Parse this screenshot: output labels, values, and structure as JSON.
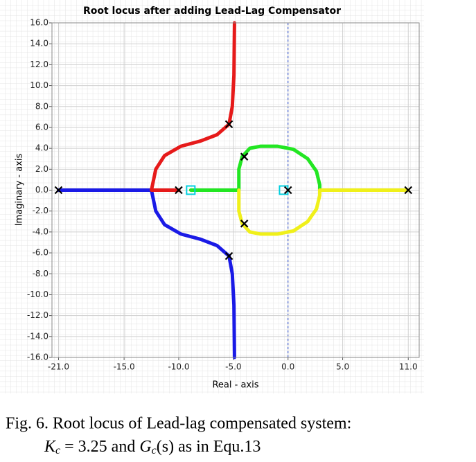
{
  "chart_data": {
    "type": "line",
    "title": "Root locus after adding Lead-Lag Compensator",
    "xlabel": "Real - axis",
    "ylabel": "Imaginary - axis",
    "xlim": [
      -21.6,
      12
    ],
    "ylim": [
      -16,
      16
    ],
    "xticks": [
      {
        "value": -21,
        "label": "-21.0"
      },
      {
        "value": -15,
        "label": "-15.0"
      },
      {
        "value": -10,
        "label": "-10.0"
      },
      {
        "value": -5,
        "label": "-5.0"
      },
      {
        "value": 0,
        "label": "0.0"
      },
      {
        "value": 5,
        "label": "5.0"
      },
      {
        "value": 11,
        "label": "11.0"
      }
    ],
    "yticks": [
      {
        "value": 16,
        "label": "16.0"
      },
      {
        "value": 14,
        "label": "14.0"
      },
      {
        "value": 12,
        "label": "12.0"
      },
      {
        "value": 10,
        "label": "10.0"
      },
      {
        "value": 8,
        "label": "8.0"
      },
      {
        "value": 6,
        "label": "6.0"
      },
      {
        "value": 4,
        "label": "4.0"
      },
      {
        "value": 2,
        "label": "2.0"
      },
      {
        "value": 0,
        "label": "0.0"
      },
      {
        "value": -2,
        "label": "-2.0"
      },
      {
        "value": -4,
        "label": "-4.0"
      },
      {
        "value": -6,
        "label": "-6.0"
      },
      {
        "value": -8,
        "label": "-8.0"
      },
      {
        "value": -10,
        "label": "-10.0"
      },
      {
        "value": -12,
        "label": "-12.0"
      },
      {
        "value": -14,
        "label": "-14.0"
      },
      {
        "value": -16,
        "label": "-16.0"
      }
    ],
    "grid": true,
    "series": [
      {
        "color": "#1a1ae6",
        "x": [
          -21,
          -12.5,
          -12.1,
          -11.3,
          -9.8,
          -8,
          -6.5,
          -5.4,
          -5.1,
          -4.95,
          -4.9
        ],
        "values": [
          0,
          0,
          -2,
          -3.3,
          -4.2,
          -4.7,
          -5.3,
          -6.3,
          -8,
          -11,
          -16
        ]
      },
      {
        "color": "#e61a1a",
        "x": [
          -10,
          -12.5,
          -12.1,
          -11.3,
          -9.8,
          -8,
          -6.5,
          -5.4,
          -5.1,
          -4.95,
          -4.9
        ],
        "values": [
          0,
          0,
          2,
          3.3,
          4.2,
          4.7,
          5.3,
          6.3,
          8,
          11,
          16
        ]
      },
      {
        "color": "#22e622",
        "x": [
          -8.9,
          -4.5,
          -4.5,
          -4.2,
          -3.5,
          -2.5,
          -1,
          0.5,
          1.8,
          2.6,
          2.9,
          2.9
        ],
        "values": [
          0,
          0,
          2,
          3.2,
          4,
          4.2,
          4.2,
          3.9,
          3,
          1.8,
          0.5,
          0
        ]
      },
      {
        "color": "#f0f01a",
        "x": [
          11,
          2.9,
          2.9,
          2.6,
          1.8,
          0.5,
          -1,
          -2.5,
          -3.5,
          -4.2,
          -4.5,
          -4.5
        ],
        "values": [
          0,
          0,
          -0.5,
          -1.8,
          -3,
          -3.9,
          -4.2,
          -4.2,
          -4,
          -3.2,
          -2,
          0
        ]
      },
      {
        "color": "#00d0e0",
        "marker": "square",
        "x": [
          -8.9,
          -0.4
        ],
        "values": [
          0,
          0
        ]
      },
      {
        "color": "#000000",
        "marker": "x",
        "x": [
          -21,
          -10,
          -5.4,
          -5.4,
          -4,
          -4,
          0,
          11
        ],
        "values": [
          0,
          0,
          6.3,
          -6.3,
          3.2,
          -3.2,
          0,
          0
        ]
      }
    ]
  },
  "caption": {
    "line1": "Fig. 6. Root locus of Lead-lag compensated system:",
    "line2": [
      "K",
      "c",
      " = 3.25 and ",
      "G",
      "c",
      "(s) as in Equ.13"
    ]
  }
}
